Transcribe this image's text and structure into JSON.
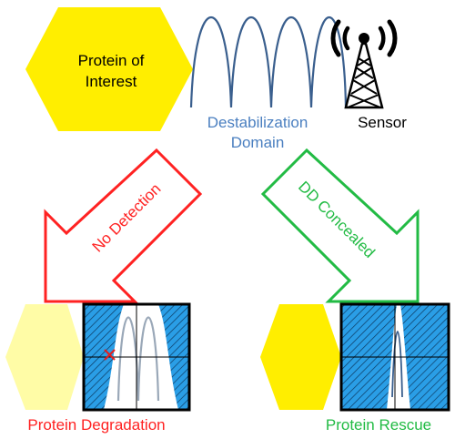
{
  "labels": {
    "protein": [
      "Protein of",
      "Interest"
    ],
    "destabilization": [
      "Destabilization",
      "Domain"
    ],
    "sensor": "Sensor",
    "no_detection": "No Detection",
    "dd_concealed": "DD Concealed",
    "protein_degradation": "Protein Degradation",
    "protein_rescue": "Protein Rescue"
  },
  "icons": {
    "sensor": "radio-tower-icon",
    "degradation_mark": "x-mark-icon"
  },
  "colors": {
    "protein": "#ffee00",
    "protein_faded": "#fffca6",
    "domain_coil": "#3a5f8e",
    "destabilization_text": "#4a7fc0",
    "no_detection": "#ff2222",
    "dd_concealed": "#22bb44",
    "sensor_box": "#2a9ee6"
  }
}
